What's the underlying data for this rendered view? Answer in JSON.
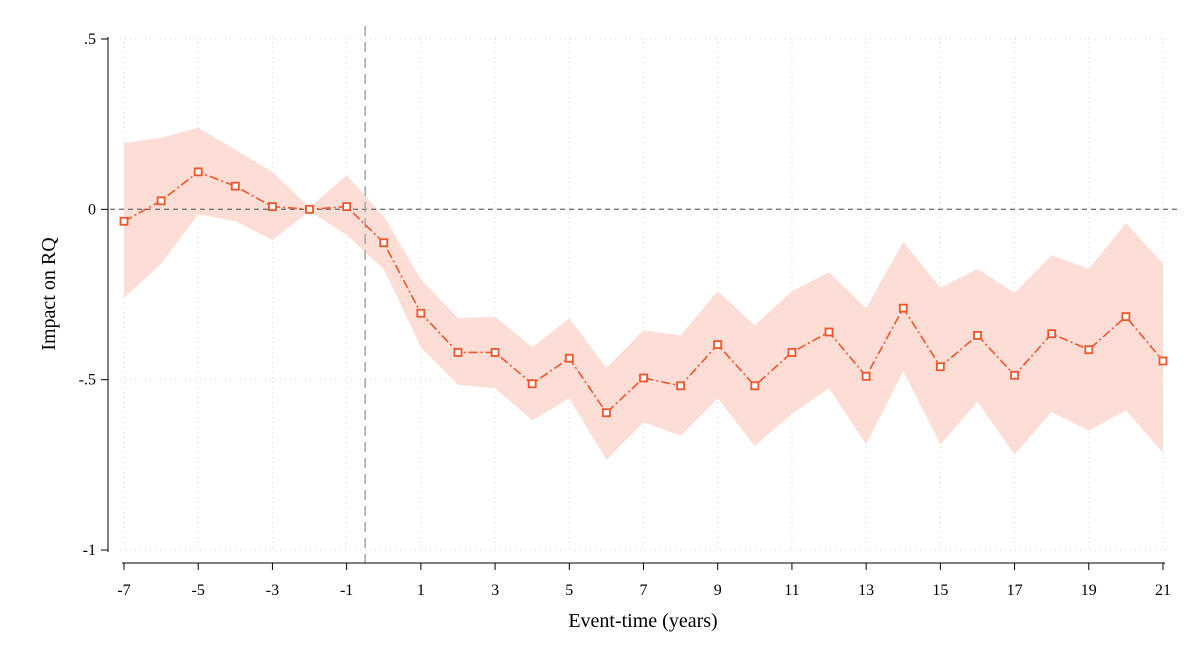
{
  "chart_data": {
    "type": "line",
    "title": "",
    "xlabel": "Event-time (years)",
    "ylabel": "Impact on RQ",
    "xlim": [
      -7,
      21
    ],
    "ylim": [
      -1,
      0.5
    ],
    "x_ticks": [
      -7,
      -5,
      -3,
      -1,
      1,
      3,
      5,
      7,
      9,
      11,
      13,
      15,
      17,
      19,
      21
    ],
    "x_tick_labels": [
      "-7",
      "-5",
      "-3",
      "-1",
      "1",
      "3",
      "5",
      "7",
      "9",
      "11",
      "13",
      "15",
      "17",
      "19",
      "21"
    ],
    "y_ticks": [
      0.5,
      0,
      -0.5,
      -1
    ],
    "y_tick_labels": [
      ".5",
      "0",
      "-.5",
      "-1"
    ],
    "grid": true,
    "grid_style": "dotted",
    "legend": "none",
    "reference_lines": [
      {
        "axis": "y",
        "value": 0,
        "style": "dashed"
      },
      {
        "axis": "x",
        "value": -0.5,
        "style": "dashed"
      }
    ],
    "series": [
      {
        "x": [
          -7,
          -6,
          -5,
          -4,
          -3,
          -2,
          -1,
          0,
          1,
          2,
          3,
          4,
          5,
          6,
          7,
          8,
          9,
          10,
          11,
          12,
          13,
          14,
          15,
          16,
          17,
          18,
          19,
          20,
          21
        ],
        "values": [
          -0.035,
          0.025,
          0.11,
          0.068,
          0.008,
          0.0,
          0.008,
          -0.098,
          -0.305,
          -0.42,
          -0.42,
          -0.512,
          -0.437,
          -0.597,
          -0.495,
          -0.518,
          -0.397,
          -0.518,
          -0.42,
          -0.36,
          -0.49,
          -0.29,
          -0.462,
          -0.37,
          -0.487,
          -0.365,
          -0.412,
          -0.315,
          -0.445
        ],
        "ci_lower": [
          -0.26,
          -0.16,
          -0.015,
          -0.035,
          -0.09,
          -0.005,
          -0.075,
          -0.175,
          -0.405,
          -0.515,
          -0.525,
          -0.62,
          -0.555,
          -0.735,
          -0.625,
          -0.665,
          -0.555,
          -0.695,
          -0.6,
          -0.525,
          -0.69,
          -0.475,
          -0.69,
          -0.565,
          -0.72,
          -0.595,
          -0.65,
          -0.59,
          -0.715
        ],
        "ci_upper": [
          0.195,
          0.21,
          0.24,
          0.175,
          0.11,
          0.005,
          0.1,
          -0.02,
          -0.205,
          -0.32,
          -0.315,
          -0.405,
          -0.32,
          -0.465,
          -0.355,
          -0.37,
          -0.24,
          -0.34,
          -0.24,
          -0.185,
          -0.29,
          -0.095,
          -0.23,
          -0.175,
          -0.245,
          -0.135,
          -0.175,
          -0.04,
          -0.16
        ],
        "color": "#f2542a",
        "ci_color": "#fdded6",
        "marker": "hollow-square",
        "line_style": "dash-dot"
      }
    ]
  }
}
